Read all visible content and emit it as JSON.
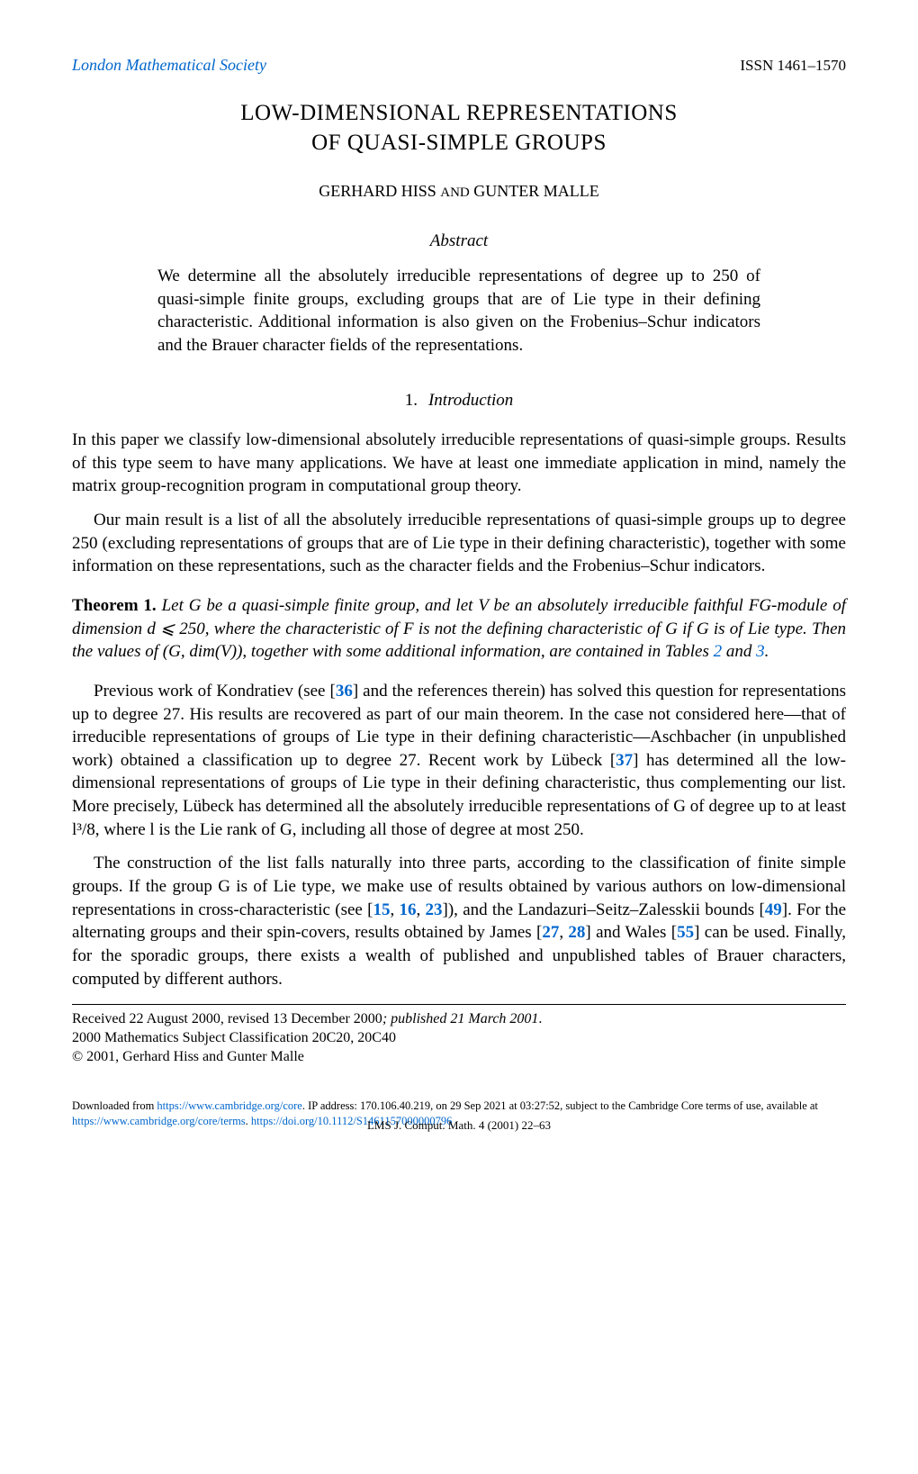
{
  "header": {
    "journal": "London Mathematical Society",
    "issn": "ISSN 1461–1570"
  },
  "title_line1": "LOW-DIMENSIONAL REPRESENTATIONS",
  "title_line2": "OF QUASI-SIMPLE GROUPS",
  "authors": {
    "a1": "GERHARD HISS",
    "and": "AND",
    "a2": "GUNTER MALLE"
  },
  "abstract": {
    "label": "Abstract",
    "text": "We determine all the absolutely irreducible representations of degree up to 250 of quasi-simple finite groups, excluding groups that are of Lie type in their defining characteristic. Additional information is also given on the Frobenius–Schur indicators and the Brauer character fields of the representations."
  },
  "section": {
    "num": "1.",
    "title": "Introduction"
  },
  "para1": "In this paper we classify low-dimensional absolutely irreducible representations of quasi-simple groups. Results of this type seem to have many applications. We have at least one immediate application in mind, namely the matrix group-recognition program in computational group theory.",
  "para2": "Our main result is a list of all the absolutely irreducible representations of quasi-simple groups up to degree 250 (excluding representations of groups that are of Lie type in their defining characteristic), together with some information on these representations, such as the character fields and the Frobenius–Schur indicators.",
  "theorem": {
    "label": "Theorem 1.",
    "part1": "Let G be a quasi-simple finite group, and let V be an absolutely irreducible faithful FG-module of dimension d ⩽ 250, where the characteristic of F is not the defining characteristic of G if G is of Lie type. Then the values of (G, dim(V)), together with some additional information, are contained in Tables ",
    "link1": "2",
    "mid": " and ",
    "link2": "3",
    "end": "."
  },
  "para3": {
    "t1": "Previous work of Kondratiev (see [",
    "r1": "36",
    "t2": "] and the references therein) has solved this question for representations up to degree 27. His results are recovered as part of our main theorem. In the case not considered here—that of irreducible representations of groups of Lie type in their defining characteristic—Aschbacher (in unpublished work) obtained a classification up to degree 27. Recent work by Lübeck [",
    "r2": "37",
    "t3": "] has determined all the low-dimensional representations of groups of Lie type in their defining characteristic, thus complementing our list. More precisely, Lübeck has determined all the absolutely irreducible representations of G of degree up to at least l³/8, where l is the Lie rank of G, including all those of degree at most 250."
  },
  "para4": {
    "t1": "The construction of the list falls naturally into three parts, according to the classification of finite simple groups. If the group G is of Lie type, we make use of results obtained by various authors on low-dimensional representations in cross-characteristic (see [",
    "r1": "15",
    "c1": ", ",
    "r2": "16",
    "c2": ", ",
    "r3": "23",
    "t2": "]), and the Landazuri–Seitz–Zalesskii bounds [",
    "r4": "49",
    "t3": "]. For the alternating groups and their spin-covers, results obtained by James [",
    "r5": "27",
    "c3": ", ",
    "r6": "28",
    "t4": "] and Wales [",
    "r7": "55",
    "t5": "] can be used. Finally, for the sporadic groups, there exists a wealth of published and unpublished tables of Brauer characters, computed by different authors."
  },
  "footer": {
    "received": "Received 22 August 2000, revised 13 December 2000",
    "published": "; published 21 March 2001",
    "msc": "2000 Mathematics Subject Classification 20C20, 20C40",
    "copyright": "© 2001, Gerhard Hiss and Gunter Malle"
  },
  "download": {
    "t1": "Downloaded from ",
    "u1": "https://www.cambridge.org/core",
    "t2": ". IP address: 170.106.40.219, on 29 Sep 2021 at 03:27:52, subject to the Cambridge Core terms of use, available at ",
    "u2": "https://www.cambridge.org/core/terms",
    "t3": ". ",
    "u3": "https://doi.org/10.1112/S1461157000000796"
  },
  "pageinfo": "LMS J. Comput. Math. 4 (2001) 22–63"
}
